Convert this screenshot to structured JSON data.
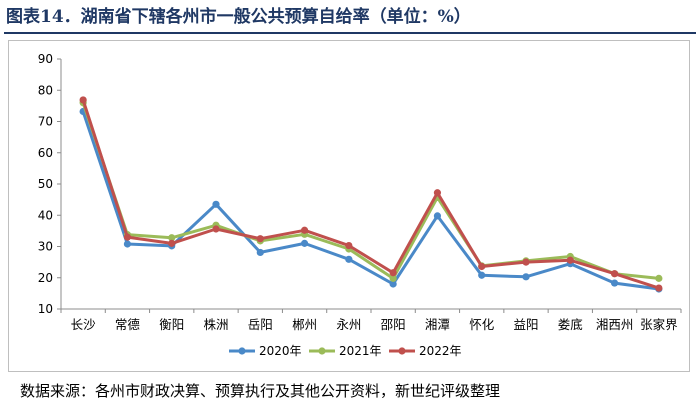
{
  "figure": {
    "title": "图表14．湖南省下辖各州市一般公共预算自给率（单位：%）",
    "source": "数据来源：各州市财政决算、预算执行及其他公开资料，新世纪评级整理"
  },
  "chart_data": {
    "type": "line",
    "title": "",
    "xlabel": "",
    "ylabel": "",
    "categories": [
      "长沙",
      "常德",
      "衡阳",
      "株洲",
      "岳阳",
      "郴州",
      "永州",
      "邵阳",
      "湘潭",
      "怀化",
      "益阳",
      "娄底",
      "湘西州",
      "张家界"
    ],
    "ylim": [
      10,
      90
    ],
    "yticks": [
      "10",
      "20",
      "30",
      "40",
      "50",
      "60",
      "70",
      "80",
      "90"
    ],
    "grid": false,
    "legend_position": "bottom",
    "series": [
      {
        "name": "2020年",
        "color": "#4a89c8",
        "values": [
          73.2,
          30.8,
          30.2,
          43.5,
          28.1,
          31.0,
          25.9,
          18.0,
          39.8,
          20.8,
          20.3,
          24.5,
          18.3,
          16.4
        ]
      },
      {
        "name": "2021年",
        "color": "#9bbb59",
        "values": [
          76.0,
          33.8,
          32.8,
          36.8,
          31.8,
          33.9,
          29.2,
          19.8,
          45.7,
          23.8,
          25.4,
          26.8,
          21.3,
          19.8
        ]
      },
      {
        "name": "2022年",
        "color": "#c0504d",
        "values": [
          76.9,
          33.0,
          31.0,
          35.6,
          32.5,
          35.2,
          30.3,
          21.6,
          47.2,
          23.6,
          25.0,
          25.6,
          21.3,
          16.7
        ]
      }
    ]
  }
}
